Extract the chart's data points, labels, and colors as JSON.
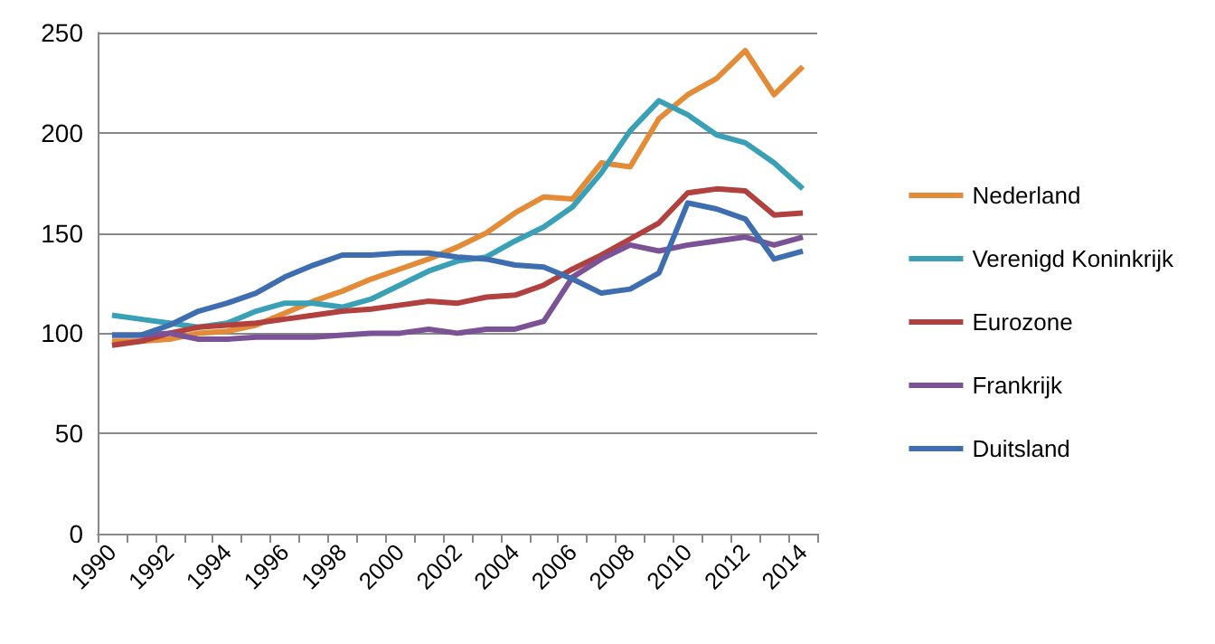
{
  "chart_data": {
    "type": "line",
    "categories": [
      "1990",
      null,
      "1992",
      null,
      "1994",
      null,
      "1996",
      null,
      "1998",
      null,
      "2000",
      null,
      "2002",
      null,
      "2004",
      null,
      "2006",
      null,
      "2008",
      null,
      "2010",
      null,
      "2012",
      null,
      "2014"
    ],
    "series": [
      {
        "name": "Nederland",
        "color": "#e48b37",
        "values": [
          96,
          96,
          97,
          100,
          101,
          104,
          110,
          116,
          121,
          127,
          132,
          137,
          143,
          150,
          160,
          168,
          167,
          185,
          183,
          207,
          219,
          227,
          241,
          219,
          233
        ]
      },
      {
        "name": "Verenigd Koninkrijk",
        "color": "#3aa0b5",
        "values": [
          109,
          107,
          105,
          103,
          105,
          111,
          115,
          115,
          113,
          117,
          124,
          131,
          136,
          138,
          146,
          153,
          163,
          180,
          201,
          216,
          209,
          199,
          195,
          185,
          172
        ]
      },
      {
        "name": "Eurozone",
        "color": "#b0413e",
        "values": [
          94,
          96,
          100,
          103,
          104,
          105,
          107,
          109,
          111,
          112,
          114,
          116,
          115,
          118,
          119,
          124,
          132,
          139,
          147,
          155,
          170,
          172,
          171,
          159,
          160
        ]
      },
      {
        "name": "Frankrijk",
        "color": "#7a5295",
        "values": [
          99,
          99,
          100,
          97,
          97,
          98,
          98,
          98,
          99,
          100,
          100,
          102,
          100,
          102,
          102,
          106,
          128,
          137,
          144,
          141,
          144,
          146,
          148,
          144,
          148
        ]
      },
      {
        "name": "Duitsland",
        "color": "#3e6db0",
        "values": [
          99,
          99,
          104,
          111,
          115,
          120,
          128,
          134,
          139,
          139,
          140,
          140,
          138,
          137,
          134,
          133,
          127,
          120,
          122,
          130,
          165,
          162,
          157,
          137,
          141
        ]
      }
    ],
    "ylim": [
      0,
      250
    ],
    "yticks": [
      0,
      50,
      100,
      150,
      200,
      250
    ],
    "grid": "y",
    "legend": "right",
    "marker": "none",
    "line_style": "solid"
  }
}
